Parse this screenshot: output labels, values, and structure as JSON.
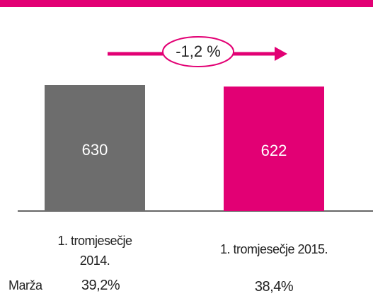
{
  "chart_data": {
    "type": "bar",
    "categories": [
      "1. tromjesečje 2014.",
      "1. tromjesečje 2015."
    ],
    "values": [
      630,
      622
    ],
    "colors": [
      "#6d6d6d",
      "#e20074"
    ],
    "ylim": [
      0,
      630
    ],
    "annotation": "-1,2 %",
    "margin_label": "Marža",
    "margin_values": [
      "39,2%",
      "38,4%"
    ]
  }
}
